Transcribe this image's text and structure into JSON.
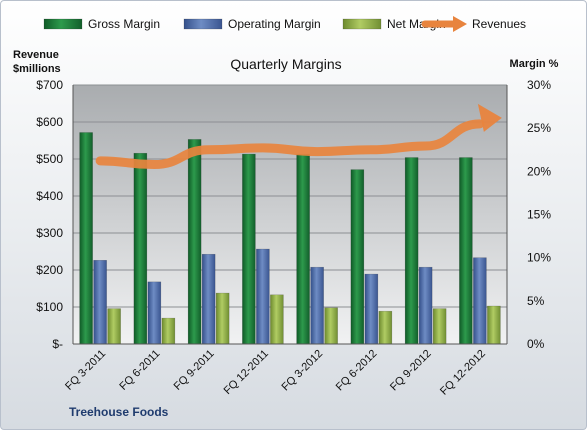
{
  "chart_data": {
    "type": "bar",
    "title": "Quarterly Margins",
    "company": "Treehouse Foods",
    "ylabel_left": "Revenue\n$millions",
    "ylabel_right": "Margin %",
    "categories": [
      "FQ 3-2011",
      "FQ 6-2011",
      "FQ 9-2011",
      "FQ 12-2011",
      "FQ 3-2012",
      "FQ 6-2012",
      "FQ 9-2012",
      "FQ 12-2012"
    ],
    "left_axis": {
      "ylim": [
        0,
        700
      ],
      "ticks": [
        0,
        100,
        200,
        300,
        400,
        500,
        600,
        700
      ],
      "tick_labels": [
        "$-",
        "$100",
        "$200",
        "$300",
        "$400",
        "$500",
        "$600",
        "$700"
      ]
    },
    "right_axis": {
      "ylim": [
        0,
        30
      ],
      "ticks": [
        0,
        5,
        10,
        15,
        20,
        25,
        30
      ],
      "tick_labels": [
        "0%",
        "5%",
        "10%",
        "15%",
        "20%",
        "25%",
        "30%"
      ]
    },
    "series": [
      {
        "name": "Gross Margin",
        "axis": "right",
        "type": "bar",
        "color": "#1f7a3a",
        "values": [
          24.5,
          22.1,
          23.7,
          22.0,
          22.0,
          20.2,
          21.6,
          21.6
        ]
      },
      {
        "name": "Operating Margin",
        "axis": "right",
        "type": "bar",
        "color": "#4f6fa8",
        "values": [
          9.7,
          7.2,
          10.4,
          11.0,
          8.9,
          8.1,
          8.9,
          10.0
        ]
      },
      {
        "name": "Net Margin",
        "axis": "right",
        "type": "bar",
        "color": "#8aa845",
        "values": [
          4.1,
          3.0,
          5.9,
          5.7,
          4.2,
          3.8,
          4.1,
          4.4
        ]
      },
      {
        "name": "Revenues",
        "axis": "left",
        "type": "line",
        "color": "#e8843e",
        "values": [
          495,
          485,
          525,
          530,
          520,
          525,
          535,
          595
        ]
      }
    ],
    "grid": true,
    "legend": "top"
  }
}
